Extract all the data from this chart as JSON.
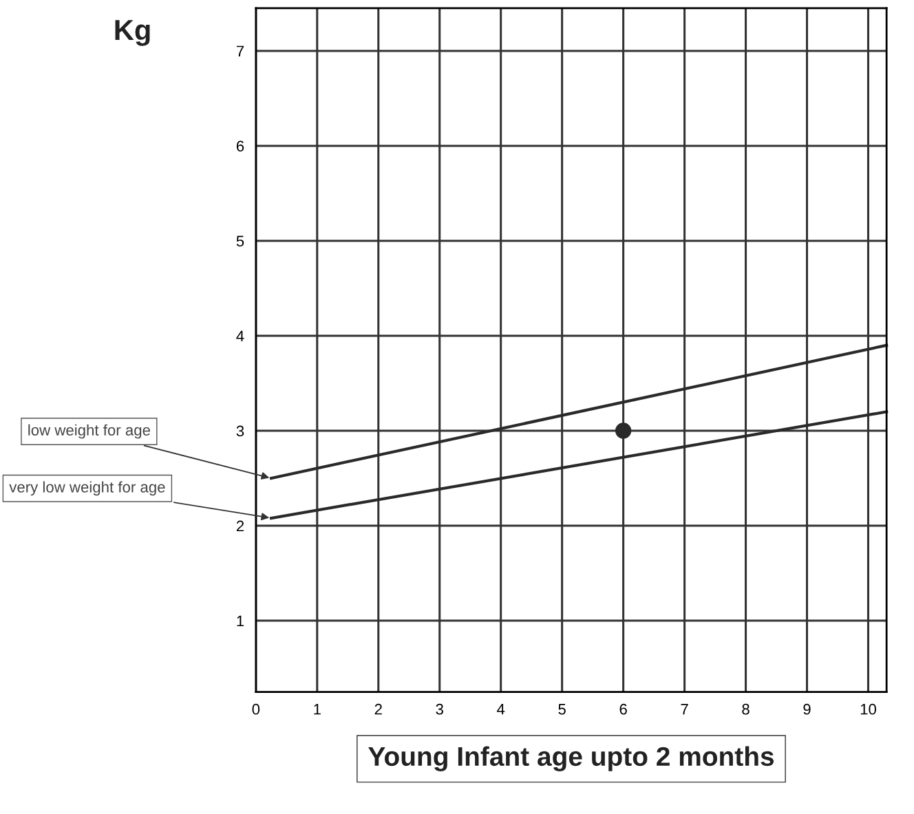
{
  "chart_data": {
    "type": "line",
    "ylabel": "Kg",
    "xlabel": "Young Infant age upto 2 months",
    "xlim": [
      0,
      10.3
    ],
    "ylim": [
      0.25,
      7.45
    ],
    "xticks": [
      0,
      1,
      2,
      3,
      4,
      5,
      6,
      7,
      8,
      9,
      10
    ],
    "yticks": [
      1,
      2,
      3,
      4,
      5,
      6,
      7
    ],
    "grid": true,
    "legend": false,
    "line_style": "solid",
    "series": [
      {
        "name": "low weight for age",
        "color": "#2a2a2a",
        "x": [
          0.25,
          10.3
        ],
        "values": [
          2.5,
          3.9
        ]
      },
      {
        "name": "very low weight for age",
        "color": "#2a2a2a",
        "x": [
          0.25,
          10.3
        ],
        "values": [
          2.08,
          3.2
        ]
      },
      {
        "type": "scatter",
        "color": "#2a2a2a",
        "x": [
          6
        ],
        "values": [
          3.0
        ],
        "marker": "circle"
      }
    ]
  }
}
